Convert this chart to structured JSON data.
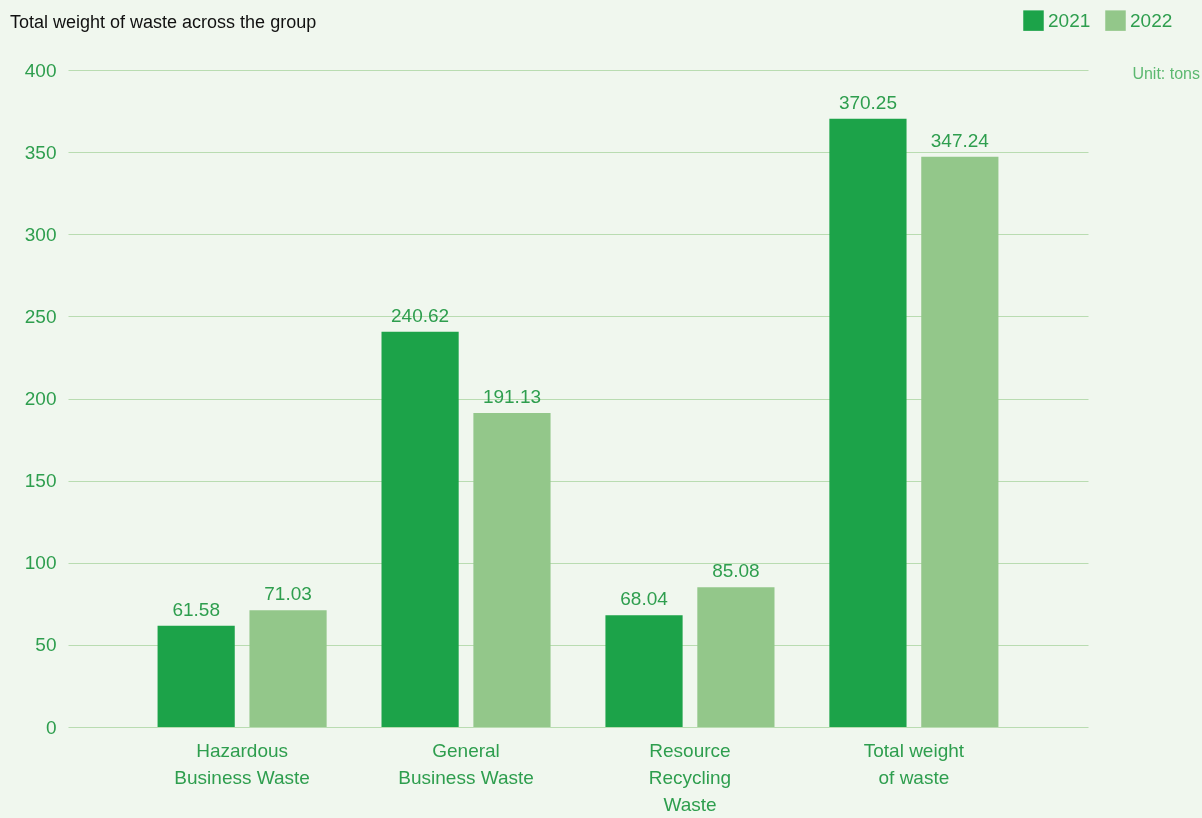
{
  "chart_data": {
    "type": "bar",
    "title": "Total weight of waste across the group",
    "annotations": [
      "Unit: tons"
    ],
    "categories": [
      "Hazardous Business Waste",
      "General Business Waste",
      "Resource Recycling Waste",
      "Total weight of waste"
    ],
    "series": [
      {
        "name": "2021",
        "color": "#1ca349",
        "values": [
          61.58,
          240.62,
          68.04,
          370.25
        ]
      },
      {
        "name": "2022",
        "color": "#93c78a",
        "values": [
          71.03,
          191.13,
          85.08,
          347.24
        ]
      }
    ],
    "ylim": [
      0,
      400
    ],
    "yticks": [
      0,
      50,
      100,
      150,
      200,
      250,
      300,
      350,
      400
    ],
    "grid": "y",
    "legend": "top right",
    "data_labels": true
  }
}
